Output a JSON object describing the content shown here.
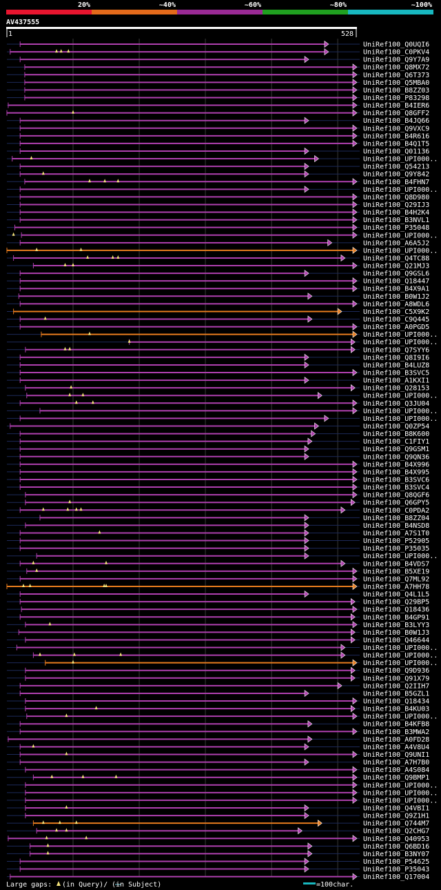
{
  "chart_data": {
    "type": "alignment-overview",
    "query_id": "AV437555",
    "query_start": "1",
    "query_end": "528",
    "query_length": 528,
    "identity_legend": [
      {
        "label": "20%",
        "color": "#e8152f"
      },
      {
        "label": "~40%",
        "color": "#e46a1b"
      },
      {
        "label": "~60%",
        "color": "#9a2a95"
      },
      {
        "label": "~80%",
        "color": "#20a020"
      },
      {
        "label": "~100%",
        "color": "#18b8c0"
      }
    ],
    "hit_colors": {
      "purple": "#b040b0",
      "orange": "#e87d1e"
    },
    "footer": {
      "large_gaps_text": "Large gaps: ",
      "query_gap_text": "(in Query)/",
      "subject_gap_text": "(in Subject)",
      "scale_text": "=100char."
    },
    "hits": [
      {
        "id": "UniRef100_Q0UQI6",
        "start": 20,
        "end": 480,
        "color": "purple",
        "gaps": []
      },
      {
        "id": "UniRef100_C0PKV4",
        "start": 5,
        "end": 480,
        "color": "purple",
        "gaps": [
          75,
          82,
          93
        ]
      },
      {
        "id": "UniRef100_Q9Y7A9",
        "start": 20,
        "end": 450,
        "color": "purple",
        "gaps": []
      },
      {
        "id": "UniRef100_Q8MX72",
        "start": 27,
        "end": 545,
        "color": "purple",
        "gaps": []
      },
      {
        "id": "UniRef100_Q6T373",
        "start": 27,
        "end": 545,
        "color": "purple",
        "gaps": []
      },
      {
        "id": "UniRef100_Q5MBA0",
        "start": 27,
        "end": 545,
        "color": "purple",
        "gaps": []
      },
      {
        "id": "UniRef100_B8ZZ03",
        "start": 27,
        "end": 545,
        "color": "purple",
        "gaps": []
      },
      {
        "id": "UniRef100_P83298",
        "start": 27,
        "end": 545,
        "color": "purple",
        "gaps": []
      },
      {
        "id": "UniRef100_B4IER6",
        "start": 2,
        "end": 555,
        "color": "purple",
        "gaps": []
      },
      {
        "id": "UniRef100_Q8GFF2",
        "start": 0,
        "end": 555,
        "color": "purple",
        "gaps": [
          100
        ]
      },
      {
        "id": "UniRef100_B4JQ66",
        "start": 20,
        "end": 450,
        "color": "purple",
        "gaps": []
      },
      {
        "id": "UniRef100_Q9VXC9",
        "start": 20,
        "end": 555,
        "color": "purple",
        "gaps": []
      },
      {
        "id": "UniRef100_B4R616",
        "start": 20,
        "end": 555,
        "color": "purple",
        "gaps": []
      },
      {
        "id": "UniRef100_B4Q1T5",
        "start": 20,
        "end": 555,
        "color": "purple",
        "gaps": []
      },
      {
        "id": "UniRef100_Q01136",
        "start": 20,
        "end": 450,
        "color": "purple",
        "gaps": []
      },
      {
        "id": "UniRef100_UPI000..",
        "start": 8,
        "end": 465,
        "color": "purple",
        "gaps": [
          37
        ]
      },
      {
        "id": "UniRef100_Q54213",
        "start": 20,
        "end": 450,
        "color": "purple",
        "gaps": []
      },
      {
        "id": "UniRef100_Q9Y842",
        "start": 20,
        "end": 450,
        "color": "purple",
        "gaps": [
          55
        ]
      },
      {
        "id": "UniRef100_B4FHN7",
        "start": 27,
        "end": 555,
        "color": "purple",
        "gaps": [
          125,
          148,
          168
        ]
      },
      {
        "id": "UniRef100_UPI000..",
        "start": 20,
        "end": 450,
        "color": "purple",
        "gaps": []
      },
      {
        "id": "UniRef100_Q8D980",
        "start": 20,
        "end": 528,
        "color": "purple",
        "gaps": []
      },
      {
        "id": "UniRef100_Q29IJ3",
        "start": 20,
        "end": 555,
        "color": "purple",
        "gaps": []
      },
      {
        "id": "UniRef100_B4H2K4",
        "start": 20,
        "end": 555,
        "color": "purple",
        "gaps": []
      },
      {
        "id": "UniRef100_B3NVL1",
        "start": 20,
        "end": 555,
        "color": "purple",
        "gaps": []
      },
      {
        "id": "UniRef100_P35048",
        "start": 12,
        "end": 528,
        "color": "purple",
        "gaps": []
      },
      {
        "id": "UniRef100_UPI000..",
        "start": 22,
        "end": 525,
        "color": "purple",
        "gaps": [
          10
        ]
      },
      {
        "id": "UniRef100_A6A5J2",
        "start": 20,
        "end": 485,
        "color": "purple",
        "gaps": []
      },
      {
        "id": "UniRef100_UPI000..",
        "start": 0,
        "end": 550,
        "color": "orange",
        "gaps": [
          45,
          112
        ]
      },
      {
        "id": "UniRef100_Q4TC88",
        "start": 10,
        "end": 505,
        "color": "purple",
        "gaps": [
          122,
          160,
          168
        ]
      },
      {
        "id": "UniRef100_Q21MJ3",
        "start": 40,
        "end": 525,
        "color": "purple",
        "gaps": [
          88,
          100
        ]
      },
      {
        "id": "UniRef100_Q9GSL6",
        "start": 20,
        "end": 450,
        "color": "purple",
        "gaps": []
      },
      {
        "id": "UniRef100_Q18447",
        "start": 20,
        "end": 528,
        "color": "purple",
        "gaps": []
      },
      {
        "id": "UniRef100_B4X9A1",
        "start": 20,
        "end": 528,
        "color": "purple",
        "gaps": []
      },
      {
        "id": "UniRef100_B0W1J2",
        "start": 18,
        "end": 455,
        "color": "purple",
        "gaps": []
      },
      {
        "id": "UniRef100_A8WDL6",
        "start": 20,
        "end": 528,
        "color": "purple",
        "gaps": []
      },
      {
        "id": "UniRef100_C5X9K2",
        "start": 10,
        "end": 500,
        "color": "orange",
        "gaps": []
      },
      {
        "id": "UniRef100_C9Q445",
        "start": 20,
        "end": 455,
        "color": "purple",
        "gaps": [
          58
        ]
      },
      {
        "id": "UniRef100_A0PGD5",
        "start": 20,
        "end": 555,
        "color": "purple",
        "gaps": []
      },
      {
        "id": "UniRef100_UPI000..",
        "start": 52,
        "end": 555,
        "color": "orange",
        "gaps": [
          125
        ]
      },
      {
        "id": "UniRef100_UPI000..",
        "start": 185,
        "end": 520,
        "color": "purple",
        "gaps": [
          185
        ]
      },
      {
        "id": "UniRef100_Q7SYY6",
        "start": 28,
        "end": 520,
        "color": "purple",
        "gaps": [
          88,
          95
        ]
      },
      {
        "id": "UniRef100_Q8I9I6",
        "start": 20,
        "end": 450,
        "color": "purple",
        "gaps": []
      },
      {
        "id": "UniRef100_B4LUZ8",
        "start": 20,
        "end": 450,
        "color": "purple",
        "gaps": []
      },
      {
        "id": "UniRef100_B3SVC5",
        "start": 20,
        "end": 528,
        "color": "purple",
        "gaps": []
      },
      {
        "id": "UniRef100_A1KXI1",
        "start": 20,
        "end": 450,
        "color": "purple",
        "gaps": []
      },
      {
        "id": "UniRef100_Q28153",
        "start": 28,
        "end": 520,
        "color": "purple",
        "gaps": [
          97
        ]
      },
      {
        "id": "UniRef100_UPI000..",
        "start": 30,
        "end": 470,
        "color": "purple",
        "gaps": [
          95,
          115
        ]
      },
      {
        "id": "UniRef100_Q3JU04",
        "start": 20,
        "end": 555,
        "color": "purple",
        "gaps": [
          105,
          130
        ]
      },
      {
        "id": "UniRef100_UPI000..",
        "start": 50,
        "end": 525,
        "color": "purple",
        "gaps": []
      },
      {
        "id": "UniRef100_UPI000..",
        "start": 20,
        "end": 480,
        "color": "purple",
        "gaps": []
      },
      {
        "id": "UniRef100_Q0ZP54",
        "start": 5,
        "end": 465,
        "color": "purple",
        "gaps": []
      },
      {
        "id": "UniRef100_B8K600",
        "start": 20,
        "end": 460,
        "color": "purple",
        "gaps": []
      },
      {
        "id": "UniRef100_C1FIY1",
        "start": 20,
        "end": 455,
        "color": "purple",
        "gaps": []
      },
      {
        "id": "UniRef100_Q9GSM1",
        "start": 20,
        "end": 450,
        "color": "purple",
        "gaps": []
      },
      {
        "id": "UniRef100_Q9QN36",
        "start": 20,
        "end": 450,
        "color": "purple",
        "gaps": []
      },
      {
        "id": "UniRef100_B4X996",
        "start": 20,
        "end": 528,
        "color": "purple",
        "gaps": []
      },
      {
        "id": "UniRef100_B4X995",
        "start": 20,
        "end": 528,
        "color": "purple",
        "gaps": []
      },
      {
        "id": "UniRef100_B3SVC6",
        "start": 20,
        "end": 528,
        "color": "purple",
        "gaps": []
      },
      {
        "id": "UniRef100_B3SVC4",
        "start": 20,
        "end": 528,
        "color": "purple",
        "gaps": []
      },
      {
        "id": "UniRef100_Q8QGF6",
        "start": 28,
        "end": 525,
        "color": "purple",
        "gaps": []
      },
      {
        "id": "UniRef100_Q6GPY5",
        "start": 28,
        "end": 520,
        "color": "purple",
        "gaps": [
          95
        ]
      },
      {
        "id": "UniRef100_C0PDA2",
        "start": 20,
        "end": 505,
        "color": "purple",
        "gaps": [
          55,
          92,
          105,
          112
        ]
      },
      {
        "id": "UniRef100_B8ZZ04",
        "start": 50,
        "end": 450,
        "color": "purple",
        "gaps": []
      },
      {
        "id": "UniRef100_B4NSD8",
        "start": 28,
        "end": 450,
        "color": "purple",
        "gaps": []
      },
      {
        "id": "UniRef100_A7S1T0",
        "start": 20,
        "end": 450,
        "color": "purple",
        "gaps": [
          140
        ]
      },
      {
        "id": "UniRef100_P52905",
        "start": 20,
        "end": 450,
        "color": "purple",
        "gaps": []
      },
      {
        "id": "UniRef100_P35035",
        "start": 20,
        "end": 450,
        "color": "purple",
        "gaps": []
      },
      {
        "id": "UniRef100_UPI000..",
        "start": 45,
        "end": 450,
        "color": "purple",
        "gaps": []
      },
      {
        "id": "UniRef100_B4VDS7",
        "start": 20,
        "end": 505,
        "color": "purple",
        "gaps": [
          40,
          150
        ]
      },
      {
        "id": "UniRef100_B5XE19",
        "start": 30,
        "end": 525,
        "color": "purple",
        "gaps": [
          45
        ]
      },
      {
        "id": "UniRef100_Q7ML92",
        "start": 20,
        "end": 528,
        "color": "purple",
        "gaps": []
      },
      {
        "id": "UniRef100_A7HH78",
        "start": 0,
        "end": 555,
        "color": "orange",
        "gaps": [
          25,
          35,
          147,
          150
        ]
      },
      {
        "id": "UniRef100_Q4L1L5",
        "start": 20,
        "end": 450,
        "color": "purple",
        "gaps": []
      },
      {
        "id": "UniRef100_Q29BP5",
        "start": 20,
        "end": 520,
        "color": "purple",
        "gaps": []
      },
      {
        "id": "UniRef100_Q18436",
        "start": 22,
        "end": 528,
        "color": "purple",
        "gaps": []
      },
      {
        "id": "UniRef100_B4GP91",
        "start": 20,
        "end": 520,
        "color": "purple",
        "gaps": []
      },
      {
        "id": "UniRef100_B3LYY3",
        "start": 28,
        "end": 525,
        "color": "purple",
        "gaps": [
          65
        ]
      },
      {
        "id": "UniRef100_B0W1J3",
        "start": 18,
        "end": 520,
        "color": "purple",
        "gaps": []
      },
      {
        "id": "UniRef100_Q46644",
        "start": 28,
        "end": 520,
        "color": "purple",
        "gaps": []
      },
      {
        "id": "UniRef100_UPI000..",
        "start": 15,
        "end": 505,
        "color": "purple",
        "gaps": []
      },
      {
        "id": "UniRef100_UPI000..",
        "start": 40,
        "end": 505,
        "color": "purple",
        "gaps": [
          50,
          102,
          172
        ]
      },
      {
        "id": "UniRef100_UPI000..",
        "start": 58,
        "end": 555,
        "color": "orange",
        "gaps": [
          100
        ]
      },
      {
        "id": "UniRef100_Q9D936",
        "start": 28,
        "end": 520,
        "color": "purple",
        "gaps": []
      },
      {
        "id": "UniRef100_Q91X79",
        "start": 28,
        "end": 520,
        "color": "purple",
        "gaps": []
      },
      {
        "id": "UniRef100_Q2IIH7",
        "start": 20,
        "end": 500,
        "color": "purple",
        "gaps": []
      },
      {
        "id": "UniRef100_B5GZL1",
        "start": 20,
        "end": 450,
        "color": "purple",
        "gaps": []
      },
      {
        "id": "UniRef100_Q18434",
        "start": 28,
        "end": 528,
        "color": "purple",
        "gaps": []
      },
      {
        "id": "UniRef100_B4KU03",
        "start": 28,
        "end": 520,
        "color": "purple",
        "gaps": [
          135
        ]
      },
      {
        "id": "UniRef100_UPI000..",
        "start": 30,
        "end": 525,
        "color": "purple",
        "gaps": [
          90
        ]
      },
      {
        "id": "UniRef100_B4KFB8",
        "start": 20,
        "end": 455,
        "color": "purple",
        "gaps": []
      },
      {
        "id": "UniRef100_B3MWA2",
        "start": 20,
        "end": 555,
        "color": "purple",
        "gaps": []
      },
      {
        "id": "UniRef100_A0FD28",
        "start": 2,
        "end": 455,
        "color": "purple",
        "gaps": []
      },
      {
        "id": "UniRef100_A4V8U4",
        "start": 20,
        "end": 450,
        "color": "purple",
        "gaps": [
          40
        ]
      },
      {
        "id": "UniRef100_Q9UNI1",
        "start": 20,
        "end": 528,
        "color": "purple",
        "gaps": [
          90
        ]
      },
      {
        "id": "UniRef100_A7H7B0",
        "start": 20,
        "end": 450,
        "color": "purple",
        "gaps": []
      },
      {
        "id": "UniRef100_A4S084",
        "start": 28,
        "end": 555,
        "color": "purple",
        "gaps": []
      },
      {
        "id": "UniRef100_Q9BMP1",
        "start": 40,
        "end": 545,
        "color": "purple",
        "gaps": [
          68,
          115,
          165
        ]
      },
      {
        "id": "UniRef100_UPI000..",
        "start": 28,
        "end": 545,
        "color": "purple",
        "gaps": []
      },
      {
        "id": "UniRef100_UPI000..",
        "start": 28,
        "end": 545,
        "color": "purple",
        "gaps": []
      },
      {
        "id": "UniRef100_UPI000..",
        "start": 28,
        "end": 545,
        "color": "purple",
        "gaps": []
      },
      {
        "id": "UniRef100_Q4VBI1",
        "start": 28,
        "end": 450,
        "color": "purple",
        "gaps": [
          90
        ]
      },
      {
        "id": "UniRef100_Q9Z1H1",
        "start": 28,
        "end": 450,
        "color": "purple",
        "gaps": []
      },
      {
        "id": "UniRef100_Q744M7",
        "start": 40,
        "end": 470,
        "color": "orange",
        "gaps": [
          55,
          80,
          105
        ]
      },
      {
        "id": "UniRef100_Q2CHG7",
        "start": 45,
        "end": 440,
        "color": "purple",
        "gaps": [
          75,
          90
        ]
      },
      {
        "id": "UniRef100_Q40953",
        "start": 2,
        "end": 555,
        "color": "purple",
        "gaps": [
          60,
          120
        ]
      },
      {
        "id": "UniRef100_Q6BD16",
        "start": 35,
        "end": 455,
        "color": "purple",
        "gaps": [
          62
        ]
      },
      {
        "id": "UniRef100_B3NY07",
        "start": 35,
        "end": 455,
        "color": "purple",
        "gaps": [
          62
        ]
      },
      {
        "id": "UniRef100_P54625",
        "start": 20,
        "end": 450,
        "color": "purple",
        "gaps": []
      },
      {
        "id": "UniRef100_P35043",
        "start": 20,
        "end": 450,
        "color": "purple",
        "gaps": []
      },
      {
        "id": "UniRef100_Q17004",
        "start": 5,
        "end": 555,
        "color": "purple",
        "gaps": []
      }
    ]
  }
}
